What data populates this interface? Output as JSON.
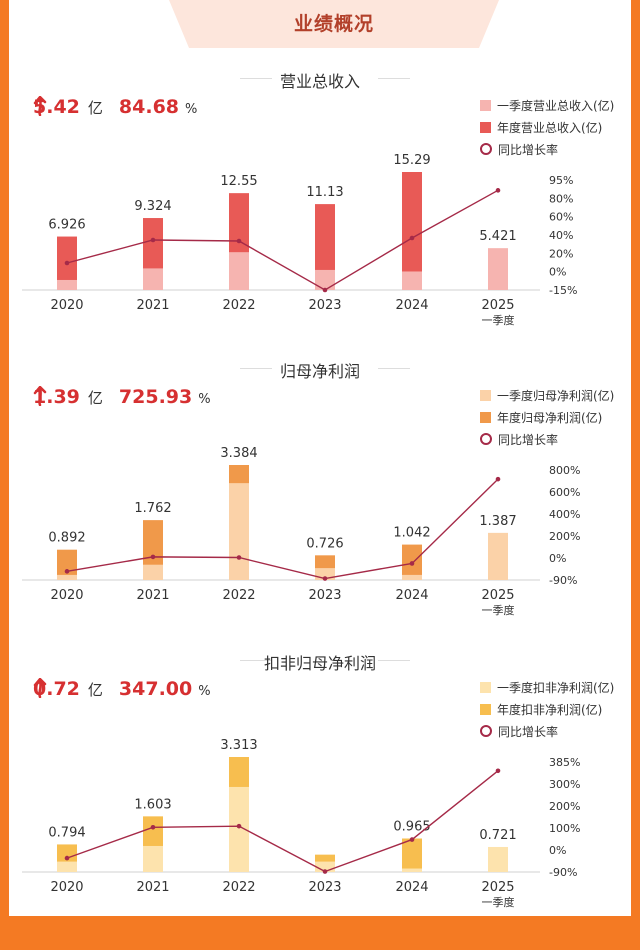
{
  "page_title": "业绩概况",
  "colors": {
    "background": "#f47a23",
    "line": "#a52a48"
  },
  "sections": [
    {
      "title": "营业总收入",
      "headline_value": "5.42",
      "headline_unit": "亿",
      "headline_pct": "84.68",
      "headline_pct_unit": "%",
      "legend": [
        "一季度营业总收入(亿)",
        "年度营业总收入(亿)",
        "同比增长率"
      ],
      "colors": {
        "q1": "#f6b4b0",
        "annual": "#e85a56"
      }
    },
    {
      "title": "归母净利润",
      "headline_value": "1.39",
      "headline_unit": "亿",
      "headline_pct": "725.93",
      "headline_pct_unit": "%",
      "legend": [
        "一季度归母净利润(亿)",
        "年度归母净利润(亿)",
        "同比增长率"
      ],
      "colors": {
        "q1": "#fbd2a8",
        "annual": "#f0994a"
      }
    },
    {
      "title": "扣非归母净利润",
      "headline_value": "0.72",
      "headline_unit": "亿",
      "headline_pct": "347.00",
      "headline_pct_unit": "%",
      "legend": [
        "一季度扣非净利润(亿)",
        "年度扣非净利润(亿)",
        "同比增长率"
      ],
      "colors": {
        "q1": "#fde3ad",
        "annual": "#f7be4f"
      }
    }
  ],
  "chart_data": [
    {
      "type": "bar",
      "title": "营业总收入",
      "categories": [
        "2020",
        "2021",
        "2022",
        "2023",
        "2024",
        "2025\n一季度"
      ],
      "series": [
        {
          "name": "一季度营业总收入(亿)",
          "values": [
            1.3,
            2.8,
            4.9,
            2.6,
            2.4,
            5.421
          ]
        },
        {
          "name": "年度营业总收入(亿)",
          "values": [
            6.926,
            9.324,
            12.55,
            11.13,
            15.29,
            null
          ]
        },
        {
          "name": "同比增长率",
          "values": [
            12,
            35,
            34,
            -15,
            37,
            84.68
          ]
        }
      ],
      "data_labels": [
        "6.926",
        "9.324",
        "12.55",
        "11.13",
        "15.29",
        "5.421"
      ],
      "y2_ticks": [
        "95%",
        "80%",
        "60%",
        "40%",
        "20%",
        "0%",
        "-15%"
      ],
      "y2lim": [
        -15,
        95
      ]
    },
    {
      "type": "bar",
      "title": "归母净利润",
      "categories": [
        "2020",
        "2021",
        "2022",
        "2023",
        "2024",
        "2025\n一季度"
      ],
      "series": [
        {
          "name": "一季度归母净利润(亿)",
          "values": [
            0.15,
            0.45,
            2.85,
            0.35,
            0.15,
            1.387
          ]
        },
        {
          "name": "年度归母净利润(亿)",
          "values": [
            0.892,
            1.762,
            3.384,
            0.726,
            1.042,
            null
          ]
        },
        {
          "name": "同比增长率",
          "values": [
            -20,
            97,
            92,
            -78,
            44,
            725.93
          ]
        }
      ],
      "data_labels": [
        "0.892",
        "1.762",
        "3.384",
        "0.726",
        "1.042",
        "1.387"
      ],
      "y2_ticks": [
        "800%",
        "600%",
        "400%",
        "200%",
        "0%",
        "-90%"
      ],
      "y2lim": [
        -90,
        800
      ]
    },
    {
      "type": "bar",
      "title": "扣非归母净利润",
      "categories": [
        "2020",
        "2021",
        "2022",
        "2023",
        "2024",
        "2025\n一季度"
      ],
      "series": [
        {
          "name": "一季度扣非净利润(亿)",
          "values": [
            0.3,
            0.75,
            2.45,
            0.3,
            0.1,
            0.721
          ]
        },
        {
          "name": "年度扣非净利润(亿)",
          "values": [
            0.794,
            1.603,
            3.313,
            0.5,
            0.965,
            null
          ]
        },
        {
          "name": "同比增长率",
          "values": [
            -30,
            103,
            108,
            -88,
            50,
            347.0
          ]
        }
      ],
      "data_labels": [
        "0.794",
        "1.603",
        "3.313",
        "",
        "0.965",
        "0.721"
      ],
      "y2_ticks": [
        "385%",
        "300%",
        "200%",
        "100%",
        "0%",
        "-90%"
      ],
      "y2lim": [
        -90,
        385
      ]
    }
  ]
}
